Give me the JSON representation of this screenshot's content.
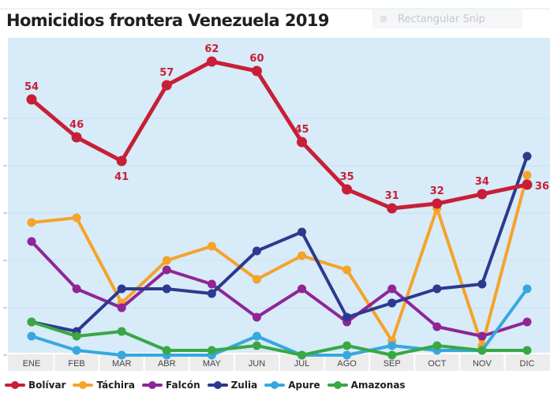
{
  "title": "Homicidios frontera Venezuela 2019",
  "snip_text": "Rectangular Snip",
  "chart_data": {
    "type": "line",
    "title": "Homicidios frontera Venezuela 2019",
    "xlabel": "",
    "ylabel": "",
    "ylim": [
      0,
      64
    ],
    "grid": true,
    "legend_position": "bottom",
    "categories": [
      "ENE",
      "FEB",
      "MAR",
      "ABR",
      "MAY",
      "JUN",
      "JUL",
      "AGO",
      "SEP",
      "OCT",
      "NOV",
      "DIC"
    ],
    "series": [
      {
        "name": "Bolívar",
        "color": "#c81f36",
        "labeled": true,
        "values": [
          54,
          46,
          41,
          57,
          62,
          60,
          45,
          35,
          31,
          32,
          34,
          36
        ]
      },
      {
        "name": "Táchira",
        "color": "#f5a32a",
        "values": [
          28,
          29,
          11,
          20,
          23,
          16,
          21,
          18,
          3,
          31,
          2,
          38
        ]
      },
      {
        "name": "Falcón",
        "color": "#8e2696",
        "values": [
          24,
          14,
          10,
          18,
          15,
          8,
          14,
          7,
          14,
          6,
          4,
          7
        ]
      },
      {
        "name": "Zulia",
        "color": "#2b3a8f",
        "values": [
          7,
          5,
          14,
          14,
          13,
          22,
          26,
          8,
          11,
          14,
          15,
          42
        ]
      },
      {
        "name": "Apure",
        "color": "#36a8e0",
        "values": [
          4,
          1,
          0,
          0,
          0,
          4,
          0,
          0,
          2,
          1,
          1,
          14
        ]
      },
      {
        "name": "Amazonas",
        "color": "#3aa744",
        "values": [
          7,
          4,
          5,
          1,
          1,
          2,
          0,
          2,
          0,
          2,
          1,
          1
        ]
      }
    ]
  }
}
